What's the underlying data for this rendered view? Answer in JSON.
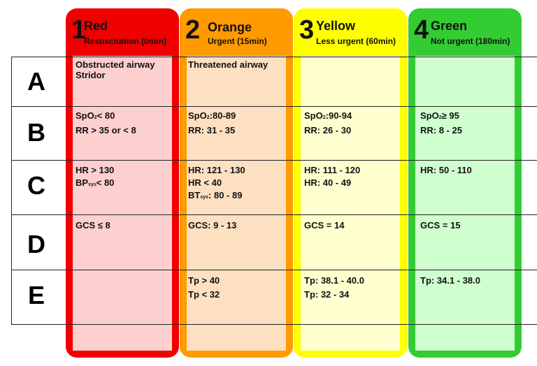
{
  "columns": [
    {
      "number": "1",
      "name": "Red",
      "subtitle": "Resuscitation (0min)",
      "border_color": "#f00000",
      "fill_color": "#fecfcf"
    },
    {
      "number": "2",
      "name": "Orange",
      "subtitle": "Urgent (15min)",
      "border_color": "#ff9a00",
      "fill_color": "#fde0c2"
    },
    {
      "number": "3",
      "name": "Yellow",
      "subtitle": "Less urgent (60min)",
      "border_color": "#ffff00",
      "fill_color": "#ffffcf"
    },
    {
      "number": "4",
      "name": "Green",
      "subtitle": "Not urgent (180min)",
      "border_color": "#33cc33",
      "fill_color": "#cfffcf"
    }
  ],
  "rows": [
    "A",
    "B",
    "C",
    "D",
    "E"
  ],
  "cells": {
    "A": {
      "red": [
        "Obstructed airway",
        "Stridor"
      ],
      "orange": [
        "Threatened airway"
      ],
      "yellow": [],
      "green": []
    },
    "B": {
      "red": [
        "< 80",
        "RR > 35 or < 8"
      ],
      "orange": [
        ":80-89",
        "RR: 31 - 35"
      ],
      "yellow": [
        ":90-94",
        "RR: 26 - 30"
      ],
      "green": [
        "≥ 95",
        "RR: 8 - 25"
      ]
    },
    "C": {
      "red": [
        "HR > 130",
        "< 80"
      ],
      "orange": [
        "HR: 121 - 130",
        "HR < 40",
        ": 80 - 89"
      ],
      "yellow": [
        "HR: 111 - 120",
        "HR: 40 - 49"
      ],
      "green": [
        "HR: 50 - 110"
      ]
    },
    "D": {
      "red": [
        "GCS ≤ 8"
      ],
      "orange": [
        "GCS: 9 - 13"
      ],
      "yellow": [
        "GCS = 14"
      ],
      "green": [
        "GCS = 15"
      ]
    },
    "E": {
      "red": [],
      "orange": [
        "Tp > 40",
        "Tp < 32"
      ],
      "yellow": [
        "Tp: 38.1 - 40.0",
        "Tp: 32 - 34"
      ],
      "green": [
        "Tp: 34.1 - 38.0"
      ]
    }
  },
  "prefixes": {
    "spo": "SpO",
    "spo_sub": "2",
    "bp": "BP",
    "bp_sub": "sys",
    "bt": "BT",
    "bt_sub": "sys"
  }
}
